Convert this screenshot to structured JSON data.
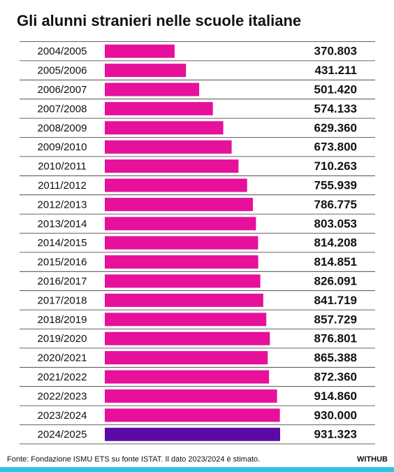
{
  "chart_data": {
    "type": "bar",
    "orientation": "horizontal",
    "title": "Gli alunni stranieri nelle scuole italiane",
    "categories": [
      "2004/2005",
      "2005/2006",
      "2006/2007",
      "2007/2008",
      "2008/2009",
      "2009/2010",
      "2010/2011",
      "2011/2012",
      "2012/2013",
      "2013/2014",
      "2014/2015",
      "2015/2016",
      "2016/2017",
      "2017/2018",
      "2018/2019",
      "2019/2020",
      "2020/2021",
      "2021/2022",
      "2022/2023",
      "2023/2024",
      "2024/2025"
    ],
    "values": [
      370803,
      431211,
      501420,
      574133,
      629360,
      673800,
      710263,
      755939,
      786775,
      803053,
      814208,
      814851,
      826091,
      841719,
      857729,
      876801,
      865388,
      872360,
      914860,
      930000,
      931323
    ],
    "value_labels": [
      "370.803",
      "431.211",
      "501.420",
      "574.133",
      "629.360",
      "673.800",
      "710.263",
      "755.939",
      "786.775",
      "803.053",
      "814.208",
      "814.851",
      "826.091",
      "841.719",
      "857.729",
      "876.801",
      "865.388",
      "872.360",
      "914.860",
      "930.000",
      "931.323"
    ],
    "colors": [
      "#e6109b",
      "#e6109b",
      "#e6109b",
      "#e6109b",
      "#e6109b",
      "#e6109b",
      "#e6109b",
      "#e6109b",
      "#e6109b",
      "#e6109b",
      "#e6109b",
      "#e6109b",
      "#e6109b",
      "#e6109b",
      "#e6109b",
      "#e6109b",
      "#e6109b",
      "#e6109b",
      "#e6109b",
      "#e6109b",
      "#5a0aa6"
    ],
    "source": "Fonte: Fondazione ISMU ETS su fonte ISTAT. Il dato 2023/2024 è stimato.",
    "brand": "WITHUB"
  }
}
